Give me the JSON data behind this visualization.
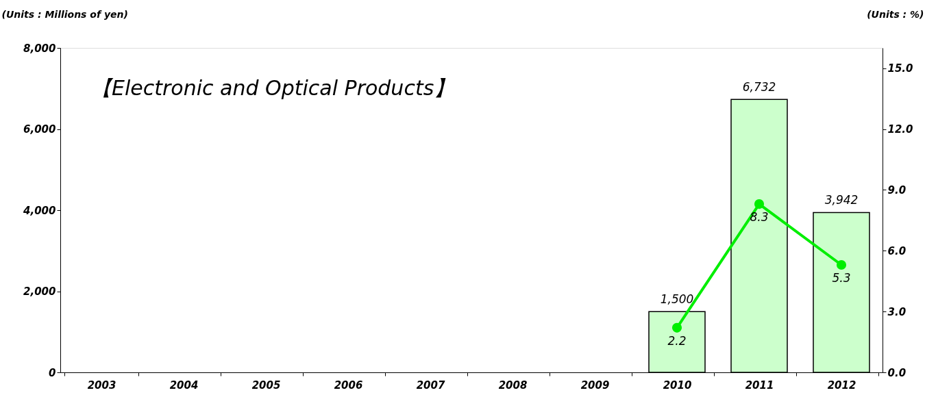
{
  "chart_data": {
    "type": "bar",
    "title": "【Electronic and Optical Products】",
    "ylabel": "(Units : Millions of yen)",
    "y2label": "(Units : %)",
    "categories": [
      "2003",
      "2004",
      "2005",
      "2006",
      "2007",
      "2008",
      "2009",
      "2010",
      "2011",
      "2012"
    ],
    "series": [
      {
        "color": "#ccffcc",
        "values": [
          null,
          null,
          null,
          null,
          null,
          null,
          null,
          1500,
          6732,
          3942
        ],
        "value_labels": [
          null,
          null,
          null,
          null,
          null,
          null,
          null,
          "1,500",
          "6,732",
          "3,942"
        ]
      },
      {
        "type": "line",
        "axis": "y2",
        "color": "#00ee00",
        "values": [
          null,
          null,
          null,
          null,
          null,
          null,
          null,
          2.2,
          8.3,
          5.3
        ],
        "value_labels": [
          null,
          null,
          null,
          null,
          null,
          null,
          null,
          "2.2",
          "8.3",
          "5.3"
        ]
      }
    ],
    "ylim": [
      0,
      8000
    ],
    "yticks": [
      0,
      {
        "value": 2000,
        "label": "2,000"
      },
      {
        "value": 4000,
        "label": "4,000"
      },
      {
        "value": 6000,
        "label": "6,000"
      },
      {
        "value": 8000,
        "label": "8,000"
      }
    ],
    "y2lim": [
      0,
      16
    ],
    "y2ticks": [
      {
        "value": 0,
        "label": "0.0"
      },
      {
        "value": 3,
        "label": "3.0"
      },
      {
        "value": 6,
        "label": "6.0"
      },
      {
        "value": 9,
        "label": "9.0"
      },
      {
        "value": 12,
        "label": "12.0"
      },
      {
        "value": 15,
        "label": "15.0"
      }
    ],
    "marker": "circle",
    "grid": false
  }
}
